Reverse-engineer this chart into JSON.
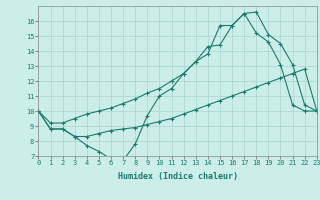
{
  "xlabel": "Humidex (Indice chaleur)",
  "background_color": "#cceee8",
  "grid_color": "#aad4ce",
  "line_color": "#1a7a6e",
  "xlim": [
    0,
    23
  ],
  "ylim": [
    7,
    17
  ],
  "xticks": [
    0,
    1,
    2,
    3,
    4,
    5,
    6,
    7,
    8,
    9,
    10,
    11,
    12,
    13,
    14,
    15,
    16,
    17,
    18,
    19,
    20,
    21,
    22,
    23
  ],
  "yticks": [
    7,
    8,
    9,
    10,
    11,
    12,
    13,
    14,
    15,
    16
  ],
  "line1_x": [
    0,
    1,
    2,
    3,
    4,
    5,
    6,
    7,
    8,
    9,
    10,
    11,
    12,
    13,
    14,
    15,
    16,
    17,
    18,
    19,
    20,
    21,
    22,
    23
  ],
  "line1_y": [
    10,
    8.8,
    8.8,
    8.3,
    7.7,
    7.3,
    6.8,
    6.7,
    7.8,
    9.7,
    11.0,
    11.5,
    12.5,
    13.3,
    13.8,
    15.7,
    15.7,
    16.5,
    16.6,
    15.1,
    14.5,
    13.1,
    10.4,
    10.0
  ],
  "line2_x": [
    0,
    1,
    2,
    3,
    4,
    5,
    6,
    7,
    8,
    9,
    10,
    11,
    12,
    13,
    14,
    15,
    16,
    17,
    18,
    19,
    20,
    21,
    22,
    23
  ],
  "line2_y": [
    10,
    8.8,
    8.8,
    8.3,
    8.3,
    8.5,
    8.7,
    8.8,
    8.9,
    9.1,
    9.3,
    9.5,
    9.8,
    10.1,
    10.4,
    10.7,
    11.0,
    11.3,
    11.6,
    11.9,
    12.2,
    12.5,
    12.8,
    10.0
  ],
  "line3_x": [
    0,
    1,
    2,
    3,
    4,
    5,
    6,
    7,
    8,
    9,
    10,
    11,
    12,
    13,
    14,
    15,
    16,
    17,
    18,
    19,
    20,
    21,
    22,
    23
  ],
  "line3_y": [
    10,
    9.2,
    9.2,
    9.5,
    9.8,
    10.0,
    10.2,
    10.5,
    10.8,
    11.2,
    11.5,
    12.0,
    12.5,
    13.3,
    14.3,
    14.4,
    15.7,
    16.5,
    15.2,
    14.6,
    13.1,
    10.4,
    10.0,
    10.0
  ]
}
